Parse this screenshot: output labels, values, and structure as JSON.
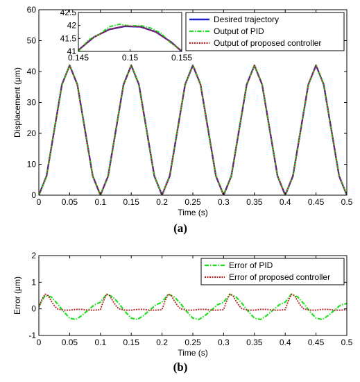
{
  "chart_data": [
    {
      "panel": "(a)",
      "type": "line",
      "xlabel": "Time (s)",
      "ylabel": "Displacement (μm)",
      "xlim": [
        0,
        0.5
      ],
      "ylim": [
        0,
        60
      ],
      "xticks": [
        0,
        0.05,
        0.1,
        0.15,
        0.2,
        0.25,
        0.3,
        0.35,
        0.4,
        0.45,
        0.5
      ],
      "yticks": [
        0,
        10,
        20,
        30,
        40,
        50,
        60
      ],
      "grid": false,
      "legend": "top-right",
      "series": [
        {
          "name": "Desired trajectory",
          "color": "#1f1fcc",
          "style": "solid",
          "x": [
            0,
            0.0125,
            0.025,
            0.0375,
            0.05,
            0.0625,
            0.075,
            0.0875,
            0.1,
            0.1125,
            0.125,
            0.1375,
            0.15,
            0.1625,
            0.175,
            0.1875,
            0.2,
            0.2125,
            0.225,
            0.2375,
            0.25,
            0.2625,
            0.275,
            0.2875,
            0.3,
            0.3125,
            0.325,
            0.3375,
            0.35,
            0.3625,
            0.375,
            0.3875,
            0.4,
            0.4125,
            0.425,
            0.4375,
            0.45,
            0.4625,
            0.475,
            0.4875,
            0.5
          ],
          "y": [
            0,
            6.2,
            21,
            35.8,
            42,
            35.8,
            21,
            6.2,
            0,
            6.2,
            21,
            35.8,
            42,
            35.8,
            21,
            6.2,
            0,
            6.2,
            21,
            35.8,
            42,
            35.8,
            21,
            6.2,
            0,
            6.2,
            21,
            35.8,
            42,
            35.8,
            21,
            6.2,
            0,
            6.2,
            21,
            35.8,
            42,
            35.8,
            21,
            6.2,
            0
          ]
        },
        {
          "name": "Output of PID",
          "color": "#22dd22",
          "style": "dashdot",
          "x": [
            0,
            0.0125,
            0.025,
            0.0375,
            0.05,
            0.0625,
            0.075,
            0.0875,
            0.1,
            0.1125,
            0.125,
            0.1375,
            0.15,
            0.1625,
            0.175,
            0.1875,
            0.2,
            0.2125,
            0.225,
            0.2375,
            0.25,
            0.2625,
            0.275,
            0.2875,
            0.3,
            0.3125,
            0.325,
            0.3375,
            0.35,
            0.3625,
            0.375,
            0.3875,
            0.4,
            0.4125,
            0.425,
            0.4375,
            0.45,
            0.4625,
            0.475,
            0.4875,
            0.5
          ],
          "y": [
            0,
            6.0,
            21.2,
            35.6,
            42.1,
            35.9,
            20.8,
            6.3,
            0.1,
            6.0,
            21.2,
            35.6,
            42.1,
            35.9,
            20.8,
            6.3,
            0.1,
            6.0,
            21.2,
            35.6,
            42.1,
            35.9,
            20.8,
            6.3,
            0.1,
            6.0,
            21.2,
            35.6,
            42.1,
            35.9,
            20.8,
            6.3,
            0.1,
            6.0,
            21.2,
            35.6,
            42.1,
            35.9,
            20.8,
            6.3,
            0.1
          ]
        },
        {
          "name": "Output of proposed controller",
          "color": "#b22222",
          "style": "dotted",
          "x": [
            0,
            0.0125,
            0.025,
            0.0375,
            0.05,
            0.0625,
            0.075,
            0.0875,
            0.1,
            0.1125,
            0.125,
            0.1375,
            0.15,
            0.1625,
            0.175,
            0.1875,
            0.2,
            0.2125,
            0.225,
            0.2375,
            0.25,
            0.2625,
            0.275,
            0.2875,
            0.3,
            0.3125,
            0.325,
            0.3375,
            0.35,
            0.3625,
            0.375,
            0.3875,
            0.4,
            0.4125,
            0.425,
            0.4375,
            0.45,
            0.4625,
            0.475,
            0.4875,
            0.5
          ],
          "y": [
            0,
            6.2,
            21,
            35.8,
            42,
            35.8,
            21,
            6.2,
            0,
            6.2,
            21,
            35.8,
            42,
            35.8,
            21,
            6.2,
            0,
            6.2,
            21,
            35.8,
            42,
            35.8,
            21,
            6.2,
            0,
            6.2,
            21,
            35.8,
            42,
            35.8,
            21,
            6.2,
            0,
            6.2,
            21,
            35.8,
            42,
            35.8,
            21,
            6.2,
            0
          ]
        }
      ],
      "inset": {
        "xlim": [
          0.145,
          0.155
        ],
        "ylim": [
          41,
          42.5
        ],
        "xticks": [
          0.145,
          0.15,
          0.155
        ],
        "yticks": [
          41,
          41.5,
          42,
          42.5
        ],
        "series": [
          {
            "name": "Desired trajectory",
            "x": [
              0.145,
              0.1465,
              0.148,
              0.1495,
              0.151,
              0.1525,
              0.154,
              0.155
            ],
            "y": [
              41.05,
              41.55,
              41.85,
              41.97,
              41.95,
              41.75,
              41.35,
              41.0
            ]
          },
          {
            "name": "Output of PID",
            "x": [
              0.145,
              0.146,
              0.147,
              0.148,
              0.149,
              0.15,
              0.151,
              0.152,
              0.153,
              0.154,
              0.155
            ],
            "y": [
              41.0,
              41.45,
              41.65,
              41.95,
              42.05,
              41.98,
              42.0,
              41.9,
              41.7,
              41.3,
              41.05
            ]
          },
          {
            "name": "Output of proposed controller",
            "x": [
              0.145,
              0.1465,
              0.148,
              0.1495,
              0.151,
              0.1525,
              0.154,
              0.155
            ],
            "y": [
              41.05,
              41.55,
              41.85,
              41.98,
              41.95,
              41.75,
              41.35,
              41.0
            ]
          }
        ]
      }
    },
    {
      "panel": "(b)",
      "type": "line",
      "xlabel": "Time (s)",
      "ylabel": "Error (μm)",
      "xlim": [
        0,
        0.5
      ],
      "ylim": [
        -1,
        2
      ],
      "xticks": [
        0,
        0.05,
        0.1,
        0.15,
        0.2,
        0.25,
        0.3,
        0.35,
        0.4,
        0.45,
        0.5
      ],
      "yticks": [
        -1,
        0,
        1,
        2
      ],
      "grid": false,
      "legend": "top-right",
      "series": [
        {
          "name": "Error of PID",
          "color": "#22dd22",
          "style": "dashdot",
          "x": [
            0,
            0.01,
            0.02,
            0.03,
            0.04,
            0.05,
            0.06,
            0.07,
            0.08,
            0.09,
            0.1,
            0.11,
            0.12,
            0.13,
            0.14,
            0.15,
            0.16,
            0.17,
            0.18,
            0.19,
            0.2,
            0.21,
            0.22,
            0.23,
            0.24,
            0.25,
            0.26,
            0.27,
            0.28,
            0.29,
            0.3,
            0.31,
            0.32,
            0.33,
            0.34,
            0.35,
            0.36,
            0.37,
            0.38,
            0.39,
            0.4,
            0.41,
            0.42,
            0.43,
            0.44,
            0.45,
            0.46,
            0.47,
            0.48,
            0.49,
            0.5
          ],
          "y": [
            0.1,
            0.5,
            0.45,
            0.2,
            -0.1,
            -0.35,
            -0.4,
            -0.25,
            -0.05,
            0.15,
            0.25,
            0.55,
            0.45,
            0.2,
            -0.1,
            -0.35,
            -0.4,
            -0.25,
            -0.05,
            0.15,
            0.25,
            0.55,
            0.45,
            0.2,
            -0.1,
            -0.35,
            -0.4,
            -0.25,
            -0.05,
            0.15,
            0.25,
            0.55,
            0.45,
            0.2,
            -0.1,
            -0.35,
            -0.4,
            -0.25,
            -0.05,
            0.15,
            0.25,
            0.55,
            0.45,
            0.2,
            -0.1,
            -0.35,
            -0.4,
            -0.25,
            -0.05,
            0.15,
            0.2
          ]
        },
        {
          "name": "Error of proposed controller",
          "color": "#b22222",
          "style": "dotted",
          "x": [
            0,
            0.005,
            0.01,
            0.015,
            0.02,
            0.025,
            0.03,
            0.04,
            0.05,
            0.06,
            0.07,
            0.08,
            0.09,
            0.1,
            0.105,
            0.11,
            0.115,
            0.12,
            0.125,
            0.13,
            0.14,
            0.15,
            0.16,
            0.17,
            0.18,
            0.19,
            0.2,
            0.205,
            0.21,
            0.215,
            0.22,
            0.225,
            0.23,
            0.24,
            0.25,
            0.26,
            0.27,
            0.28,
            0.29,
            0.3,
            0.305,
            0.31,
            0.315,
            0.32,
            0.325,
            0.33,
            0.34,
            0.35,
            0.36,
            0.37,
            0.38,
            0.39,
            0.4,
            0.405,
            0.41,
            0.415,
            0.42,
            0.425,
            0.43,
            0.44,
            0.45,
            0.46,
            0.47,
            0.48,
            0.49,
            0.5
          ],
          "y": [
            0.05,
            0.35,
            0.55,
            0.5,
            0.3,
            0.12,
            0.0,
            -0.05,
            -0.05,
            -0.02,
            -0.02,
            -0.05,
            -0.05,
            -0.03,
            0.3,
            0.55,
            0.5,
            0.3,
            0.12,
            0.0,
            -0.05,
            -0.05,
            -0.02,
            -0.02,
            -0.05,
            -0.05,
            -0.03,
            0.3,
            0.55,
            0.5,
            0.3,
            0.12,
            0.0,
            -0.05,
            -0.05,
            -0.02,
            -0.02,
            -0.05,
            -0.05,
            -0.03,
            0.3,
            0.55,
            0.5,
            0.3,
            0.12,
            0.0,
            -0.05,
            -0.05,
            -0.02,
            -0.02,
            -0.05,
            -0.05,
            -0.03,
            0.3,
            0.55,
            0.5,
            0.3,
            0.12,
            0.0,
            -0.05,
            -0.05,
            -0.02,
            -0.02,
            -0.05,
            -0.05,
            -0.03
          ]
        }
      ]
    }
  ]
}
